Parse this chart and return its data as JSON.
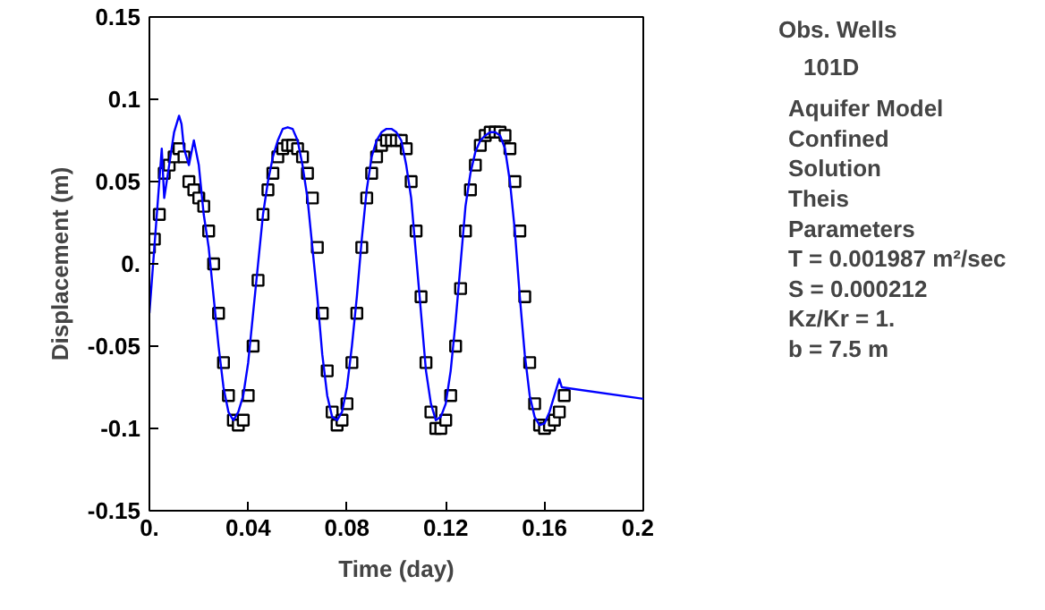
{
  "chart_data": {
    "type": "scatter",
    "xlabel": "Time (day)",
    "ylabel": "Displacement (m)",
    "legend_title": "Obs. Wells",
    "legend": "right",
    "grid": false,
    "xlim": [
      0,
      0.2
    ],
    "xticks": [
      {
        "value": 0,
        "label": "0."
      },
      0.04,
      0.08,
      0.12,
      0.16,
      0.2
    ],
    "ylim": [
      -0.15,
      0.15
    ],
    "yticks": [
      -0.15,
      -0.1,
      -0.05,
      {
        "value": 0,
        "label": "0."
      },
      0.05,
      0.1,
      0.15
    ],
    "series": [
      {
        "name": "101D",
        "marker": "square",
        "color": "#000000",
        "x": [
          0.0,
          0.002,
          0.004,
          0.006,
          0.008,
          0.01,
          0.012,
          0.014,
          0.016,
          0.018,
          0.02,
          0.022,
          0.024,
          0.026,
          0.028,
          0.03,
          0.032,
          0.034,
          0.036,
          0.038,
          0.04,
          0.042,
          0.044,
          0.046,
          0.048,
          0.05,
          0.052,
          0.054,
          0.056,
          0.058,
          0.06,
          0.062,
          0.064,
          0.066,
          0.068,
          0.07,
          0.072,
          0.074,
          0.076,
          0.078,
          0.08,
          0.082,
          0.084,
          0.086,
          0.088,
          0.09,
          0.092,
          0.094,
          0.096,
          0.098,
          0.1,
          0.102,
          0.104,
          0.106,
          0.108,
          0.11,
          0.112,
          0.114,
          0.116,
          0.118,
          0.12,
          0.122,
          0.124,
          0.126,
          0.128,
          0.13,
          0.132,
          0.134,
          0.136,
          0.138,
          0.14,
          0.142,
          0.144,
          0.146,
          0.148,
          0.15,
          0.152,
          0.154,
          0.156,
          0.158,
          0.16,
          0.162,
          0.164,
          0.166,
          0.168
        ],
        "values": [
          0.01,
          0.015,
          0.03,
          0.055,
          0.06,
          0.065,
          0.07,
          0.065,
          0.05,
          0.045,
          0.04,
          0.035,
          0.02,
          0.0,
          -0.03,
          -0.06,
          -0.08,
          -0.095,
          -0.098,
          -0.095,
          -0.08,
          -0.05,
          -0.01,
          0.03,
          0.045,
          0.055,
          0.065,
          0.07,
          0.072,
          0.072,
          0.07,
          0.065,
          0.055,
          0.04,
          0.01,
          -0.03,
          -0.065,
          -0.09,
          -0.098,
          -0.095,
          -0.085,
          -0.06,
          -0.03,
          0.01,
          0.04,
          0.055,
          0.065,
          0.072,
          0.075,
          0.075,
          0.075,
          0.075,
          0.07,
          0.05,
          0.02,
          -0.02,
          -0.06,
          -0.09,
          -0.1,
          -0.1,
          -0.095,
          -0.08,
          -0.05,
          -0.015,
          0.02,
          0.045,
          0.06,
          0.072,
          0.078,
          0.08,
          0.08,
          0.08,
          0.078,
          0.07,
          0.05,
          0.02,
          -0.02,
          -0.06,
          -0.085,
          -0.098,
          -0.1,
          -0.098,
          -0.095,
          -0.09,
          -0.08
        ]
      },
      {
        "type": "line",
        "marker": "none",
        "color": "#0000ff",
        "x": [
          0.0,
          0.002,
          0.004,
          0.005,
          0.006,
          0.008,
          0.01,
          0.012,
          0.013,
          0.014,
          0.016,
          0.018,
          0.02,
          0.022,
          0.024,
          0.026,
          0.028,
          0.03,
          0.032,
          0.034,
          0.036,
          0.038,
          0.04,
          0.042,
          0.044,
          0.046,
          0.048,
          0.05,
          0.052,
          0.054,
          0.056,
          0.058,
          0.06,
          0.062,
          0.064,
          0.066,
          0.068,
          0.07,
          0.072,
          0.074,
          0.076,
          0.078,
          0.08,
          0.082,
          0.084,
          0.086,
          0.088,
          0.09,
          0.092,
          0.094,
          0.096,
          0.098,
          0.1,
          0.102,
          0.104,
          0.106,
          0.108,
          0.11,
          0.112,
          0.114,
          0.116,
          0.118,
          0.12,
          0.122,
          0.124,
          0.126,
          0.128,
          0.13,
          0.132,
          0.134,
          0.136,
          0.138,
          0.14,
          0.142,
          0.144,
          0.146,
          0.148,
          0.15,
          0.152,
          0.154,
          0.156,
          0.158,
          0.16,
          0.162,
          0.164,
          0.166,
          0.167,
          0.2
        ],
        "values": [
          -0.03,
          0.01,
          0.05,
          0.07,
          0.04,
          0.06,
          0.08,
          0.09,
          0.085,
          0.07,
          0.06,
          0.075,
          0.06,
          0.03,
          0.01,
          -0.02,
          -0.05,
          -0.075,
          -0.09,
          -0.095,
          -0.09,
          -0.08,
          -0.06,
          -0.03,
          0.0,
          0.03,
          0.05,
          0.065,
          0.075,
          0.082,
          0.083,
          0.082,
          0.075,
          0.06,
          0.04,
          0.01,
          -0.02,
          -0.055,
          -0.08,
          -0.093,
          -0.095,
          -0.09,
          -0.075,
          -0.05,
          -0.02,
          0.015,
          0.045,
          0.065,
          0.075,
          0.08,
          0.082,
          0.082,
          0.08,
          0.075,
          0.06,
          0.04,
          0.005,
          -0.03,
          -0.065,
          -0.085,
          -0.095,
          -0.093,
          -0.085,
          -0.065,
          -0.035,
          0.0,
          0.035,
          0.055,
          0.068,
          0.075,
          0.078,
          0.08,
          0.08,
          0.078,
          0.07,
          0.05,
          0.02,
          -0.02,
          -0.055,
          -0.08,
          -0.093,
          -0.098,
          -0.097,
          -0.09,
          -0.08,
          -0.07,
          -0.075,
          -0.082
        ]
      }
    ],
    "annotations": [
      "Aquifer Model",
      "Confined",
      "Solution",
      "Theis",
      "Parameters",
      "T     = 0.001987 m²/sec",
      "S     = 0.000212",
      "Kz/Kr = 1.",
      "b     = 7.5 m"
    ]
  }
}
